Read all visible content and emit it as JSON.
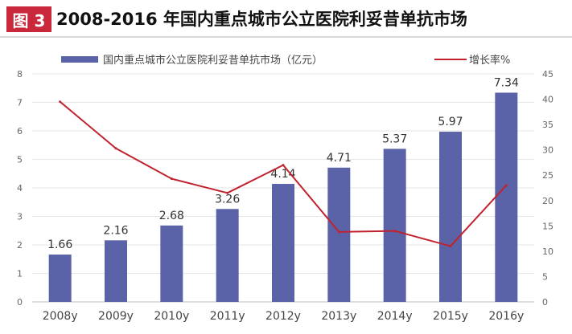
{
  "header": {
    "badge": "图 3",
    "title": "2008-2016 年国内重点城市公立医院利妥昔单抗市场"
  },
  "chart_data": {
    "type": "bar",
    "title": "2008-2016 年国内重点城市公立医院利妥昔单抗市场",
    "categories": [
      "2008y",
      "2009y",
      "2010y",
      "2011y",
      "2012y",
      "2013y",
      "2014y",
      "2015y",
      "2016y"
    ],
    "series": [
      {
        "name": "国内重点城市公立医院利妥昔单抗市场（亿元）",
        "type": "bar",
        "axis": "left",
        "color": "#5b63a8",
        "values": [
          1.66,
          2.16,
          2.68,
          3.26,
          4.14,
          4.71,
          5.37,
          5.97,
          7.34
        ],
        "labels": [
          "1.66",
          "2.16",
          "2.68",
          "3.26",
          "4.14",
          "4.71",
          "5.37",
          "5.97",
          "7.34"
        ]
      },
      {
        "name": "增长率%",
        "type": "line",
        "axis": "right",
        "color": "#c0222e",
        "values": [
          39.5,
          30.3,
          24.3,
          21.5,
          27.0,
          13.8,
          14.0,
          11.0,
          23.0
        ]
      }
    ],
    "ylim": [
      0,
      8
    ],
    "yticks": [
      "0",
      "1",
      "2",
      "3",
      "4",
      "5",
      "6",
      "7",
      "8"
    ],
    "y2lim": [
      0,
      45
    ],
    "y2ticks": [
      "0",
      "5",
      "10",
      "15",
      "20",
      "25",
      "30",
      "35",
      "40",
      "45"
    ],
    "grid": true,
    "legend": "top"
  }
}
